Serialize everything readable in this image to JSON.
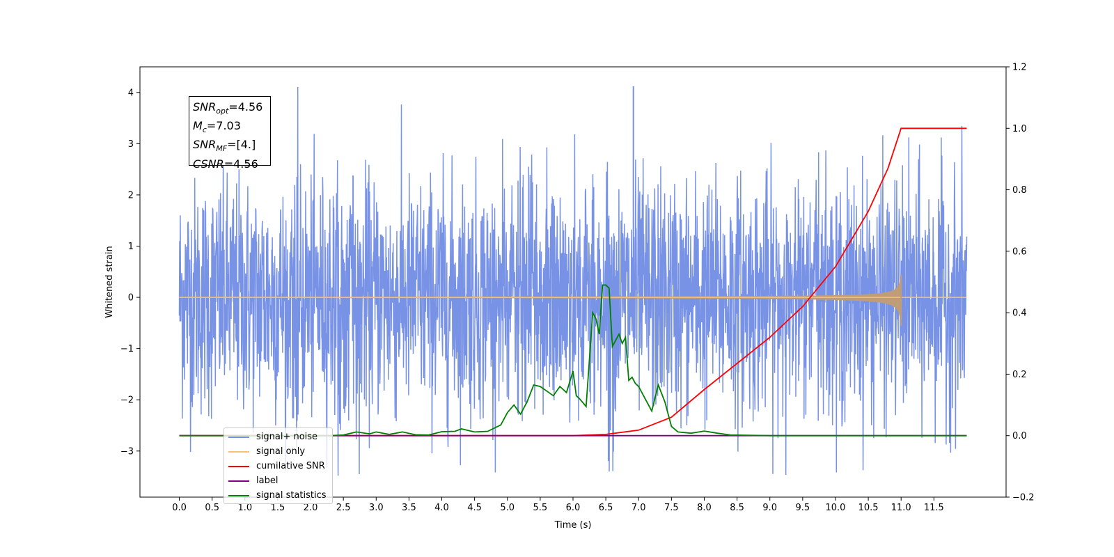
{
  "chart_data": {
    "type": "line",
    "title": "",
    "xlabel": "Time (s)",
    "ylabel": "Whitened strain",
    "xlim": [
      -0.6,
      12.6
    ],
    "ylim": [
      -3.9,
      4.5
    ],
    "y2lim": [
      -0.2,
      1.2
    ],
    "x_ticks": [
      "0.0",
      "0.5",
      "1.0",
      "1.5",
      "2.0",
      "2.5",
      "3.0",
      "3.5",
      "4.0",
      "4.5",
      "5.0",
      "5.5",
      "6.0",
      "6.5",
      "7.0",
      "7.5",
      "8.0",
      "8.5",
      "9.0",
      "9.5",
      "10.0",
      "10.5",
      "11.0",
      "11.5"
    ],
    "y_ticks": [
      "4",
      "3",
      "2",
      "1",
      "0",
      "−1",
      "−2",
      "−3"
    ],
    "y2_ticks": [
      "1.2",
      "1.0",
      "0.8",
      "0.6",
      "0.4",
      "0.2",
      "0.0",
      "−0.2"
    ],
    "grid": false,
    "legend_position": "lower-left",
    "annotations": [
      {
        "label": "SNR",
        "sub": "opt",
        "value": "=4.56"
      },
      {
        "label": "M",
        "sub": "c",
        "value": "=7.03"
      },
      {
        "label": "SNR",
        "sub": "MF",
        "value": "=[4.]"
      },
      {
        "label": "CSNR",
        "sub": "",
        "value": "=4.56"
      }
    ],
    "series": [
      {
        "name": "signal+ noise",
        "color": "#7892e6",
        "axis": "left",
        "kind": "noise",
        "envelope": {
          "x_start": 0.0,
          "x_end": 12.0,
          "typical_amplitude": 1.6,
          "max": 4.12,
          "min": -3.5
        }
      },
      {
        "name": "signal only",
        "color": "#f5c27a",
        "axis": "left",
        "kind": "chirp",
        "chirp": {
          "x_start": 0.0,
          "x_end": 12.0,
          "merger": 11.0,
          "peak_amplitude": 0.45
        }
      },
      {
        "name": "cumilative SNR",
        "color": "#ff0000",
        "axis": "right",
        "x": [
          0.0,
          6.0,
          6.5,
          7.0,
          7.5,
          8.0,
          8.5,
          9.0,
          9.5,
          10.0,
          10.5,
          10.8,
          11.0,
          11.5,
          12.0
        ],
        "y": [
          0.0,
          0.0,
          0.004,
          0.018,
          0.06,
          0.15,
          0.235,
          0.32,
          0.42,
          0.55,
          0.73,
          0.87,
          1.0,
          1.0,
          1.0
        ]
      },
      {
        "name": "label",
        "color": "#800080",
        "axis": "right",
        "x": [
          0.0,
          12.0
        ],
        "y": [
          0.0,
          0.0
        ]
      },
      {
        "name": "signal statistics",
        "color": "#008000",
        "axis": "right",
        "x": [
          0.0,
          2.3,
          2.5,
          2.7,
          2.9,
          3.0,
          3.2,
          3.4,
          3.6,
          3.8,
          4.0,
          4.2,
          4.3,
          4.5,
          4.7,
          4.9,
          5.0,
          5.1,
          5.2,
          5.3,
          5.4,
          5.5,
          5.6,
          5.7,
          5.8,
          5.9,
          6.0,
          6.05,
          6.1,
          6.2,
          6.3,
          6.35,
          6.4,
          6.45,
          6.5,
          6.55,
          6.6,
          6.7,
          6.75,
          6.8,
          6.85,
          6.9,
          6.95,
          7.0,
          7.2,
          7.3,
          7.4,
          7.5,
          7.6,
          7.8,
          8.0,
          8.2,
          8.4,
          9.0,
          12.0
        ],
        "y": [
          0.0,
          0.0,
          0.002,
          0.012,
          0.006,
          0.012,
          0.004,
          0.012,
          0.003,
          0.002,
          0.013,
          0.014,
          0.022,
          0.012,
          0.014,
          0.035,
          0.075,
          0.1,
          0.07,
          0.11,
          0.165,
          0.16,
          0.145,
          0.13,
          0.16,
          0.14,
          0.21,
          0.13,
          0.12,
          0.095,
          0.4,
          0.38,
          0.33,
          0.49,
          0.49,
          0.48,
          0.29,
          0.33,
          0.3,
          0.32,
          0.18,
          0.19,
          0.17,
          0.16,
          0.08,
          0.165,
          0.11,
          0.03,
          0.012,
          0.008,
          0.015,
          0.008,
          0.002,
          0.0,
          0.0
        ]
      }
    ]
  }
}
